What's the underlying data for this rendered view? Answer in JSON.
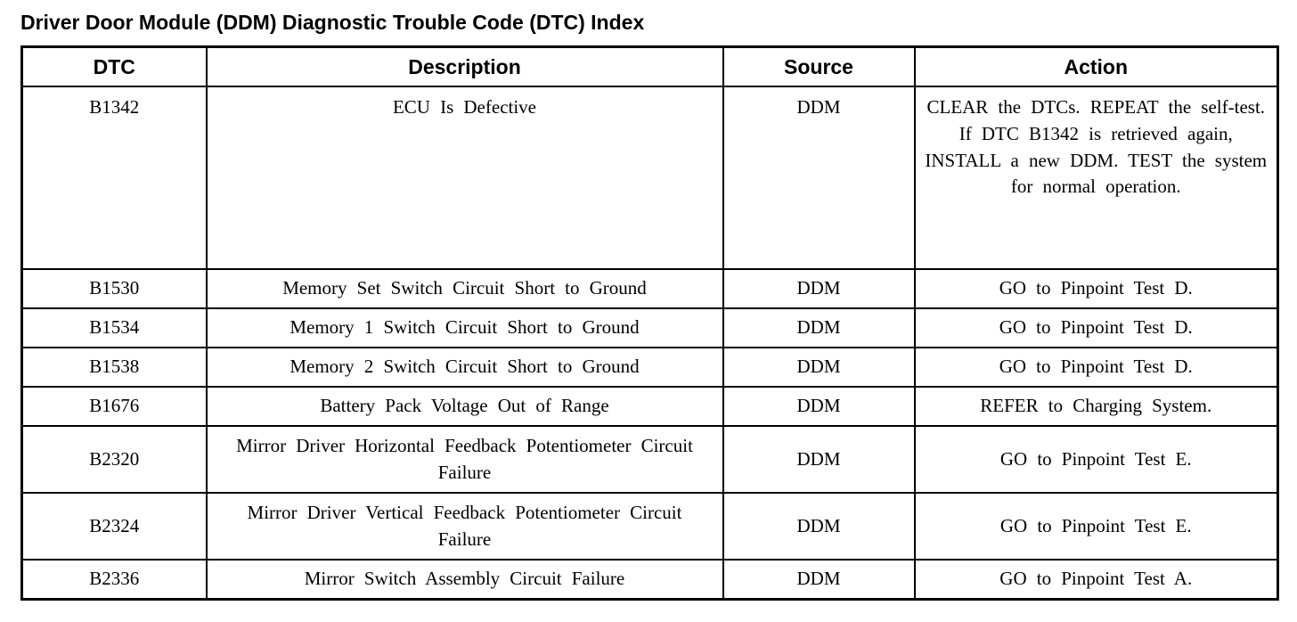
{
  "page": {
    "title": "Driver Door Module (DDM) Diagnostic Trouble Code (DTC) Index"
  },
  "table": {
    "headers": {
      "dtc": "DTC",
      "description": "Description",
      "source": "Source",
      "action": "Action"
    },
    "rows": [
      {
        "dtc": "B1342",
        "description": "ECU Is Defective",
        "source": "DDM",
        "action": "CLEAR the DTCs. REPEAT the self-test. If DTC B1342 is retrieved again, INSTALL a new DDM. TEST the system for normal operation."
      },
      {
        "dtc": "B1530",
        "description": "Memory Set Switch Circuit Short to Ground",
        "source": "DDM",
        "action": "GO to Pinpoint Test D."
      },
      {
        "dtc": "B1534",
        "description": "Memory 1 Switch Circuit Short to Ground",
        "source": "DDM",
        "action": "GO to Pinpoint Test D."
      },
      {
        "dtc": "B1538",
        "description": "Memory 2 Switch Circuit Short to Ground",
        "source": "DDM",
        "action": "GO to Pinpoint Test D."
      },
      {
        "dtc": "B1676",
        "description": "Battery Pack Voltage Out of Range",
        "source": "DDM",
        "action": "REFER to Charging System."
      },
      {
        "dtc": "B2320",
        "description": "Mirror Driver Horizontal Feedback Potentiometer Circuit Failure",
        "source": "DDM",
        "action": "GO to Pinpoint Test E."
      },
      {
        "dtc": "B2324",
        "description": "Mirror Driver Vertical Feedback Potentiometer Circuit Failure",
        "source": "DDM",
        "action": "GO to Pinpoint Test E."
      },
      {
        "dtc": "B2336",
        "description": "Mirror Switch Assembly Circuit Failure",
        "source": "DDM",
        "action": "GO to Pinpoint Test A."
      }
    ]
  }
}
